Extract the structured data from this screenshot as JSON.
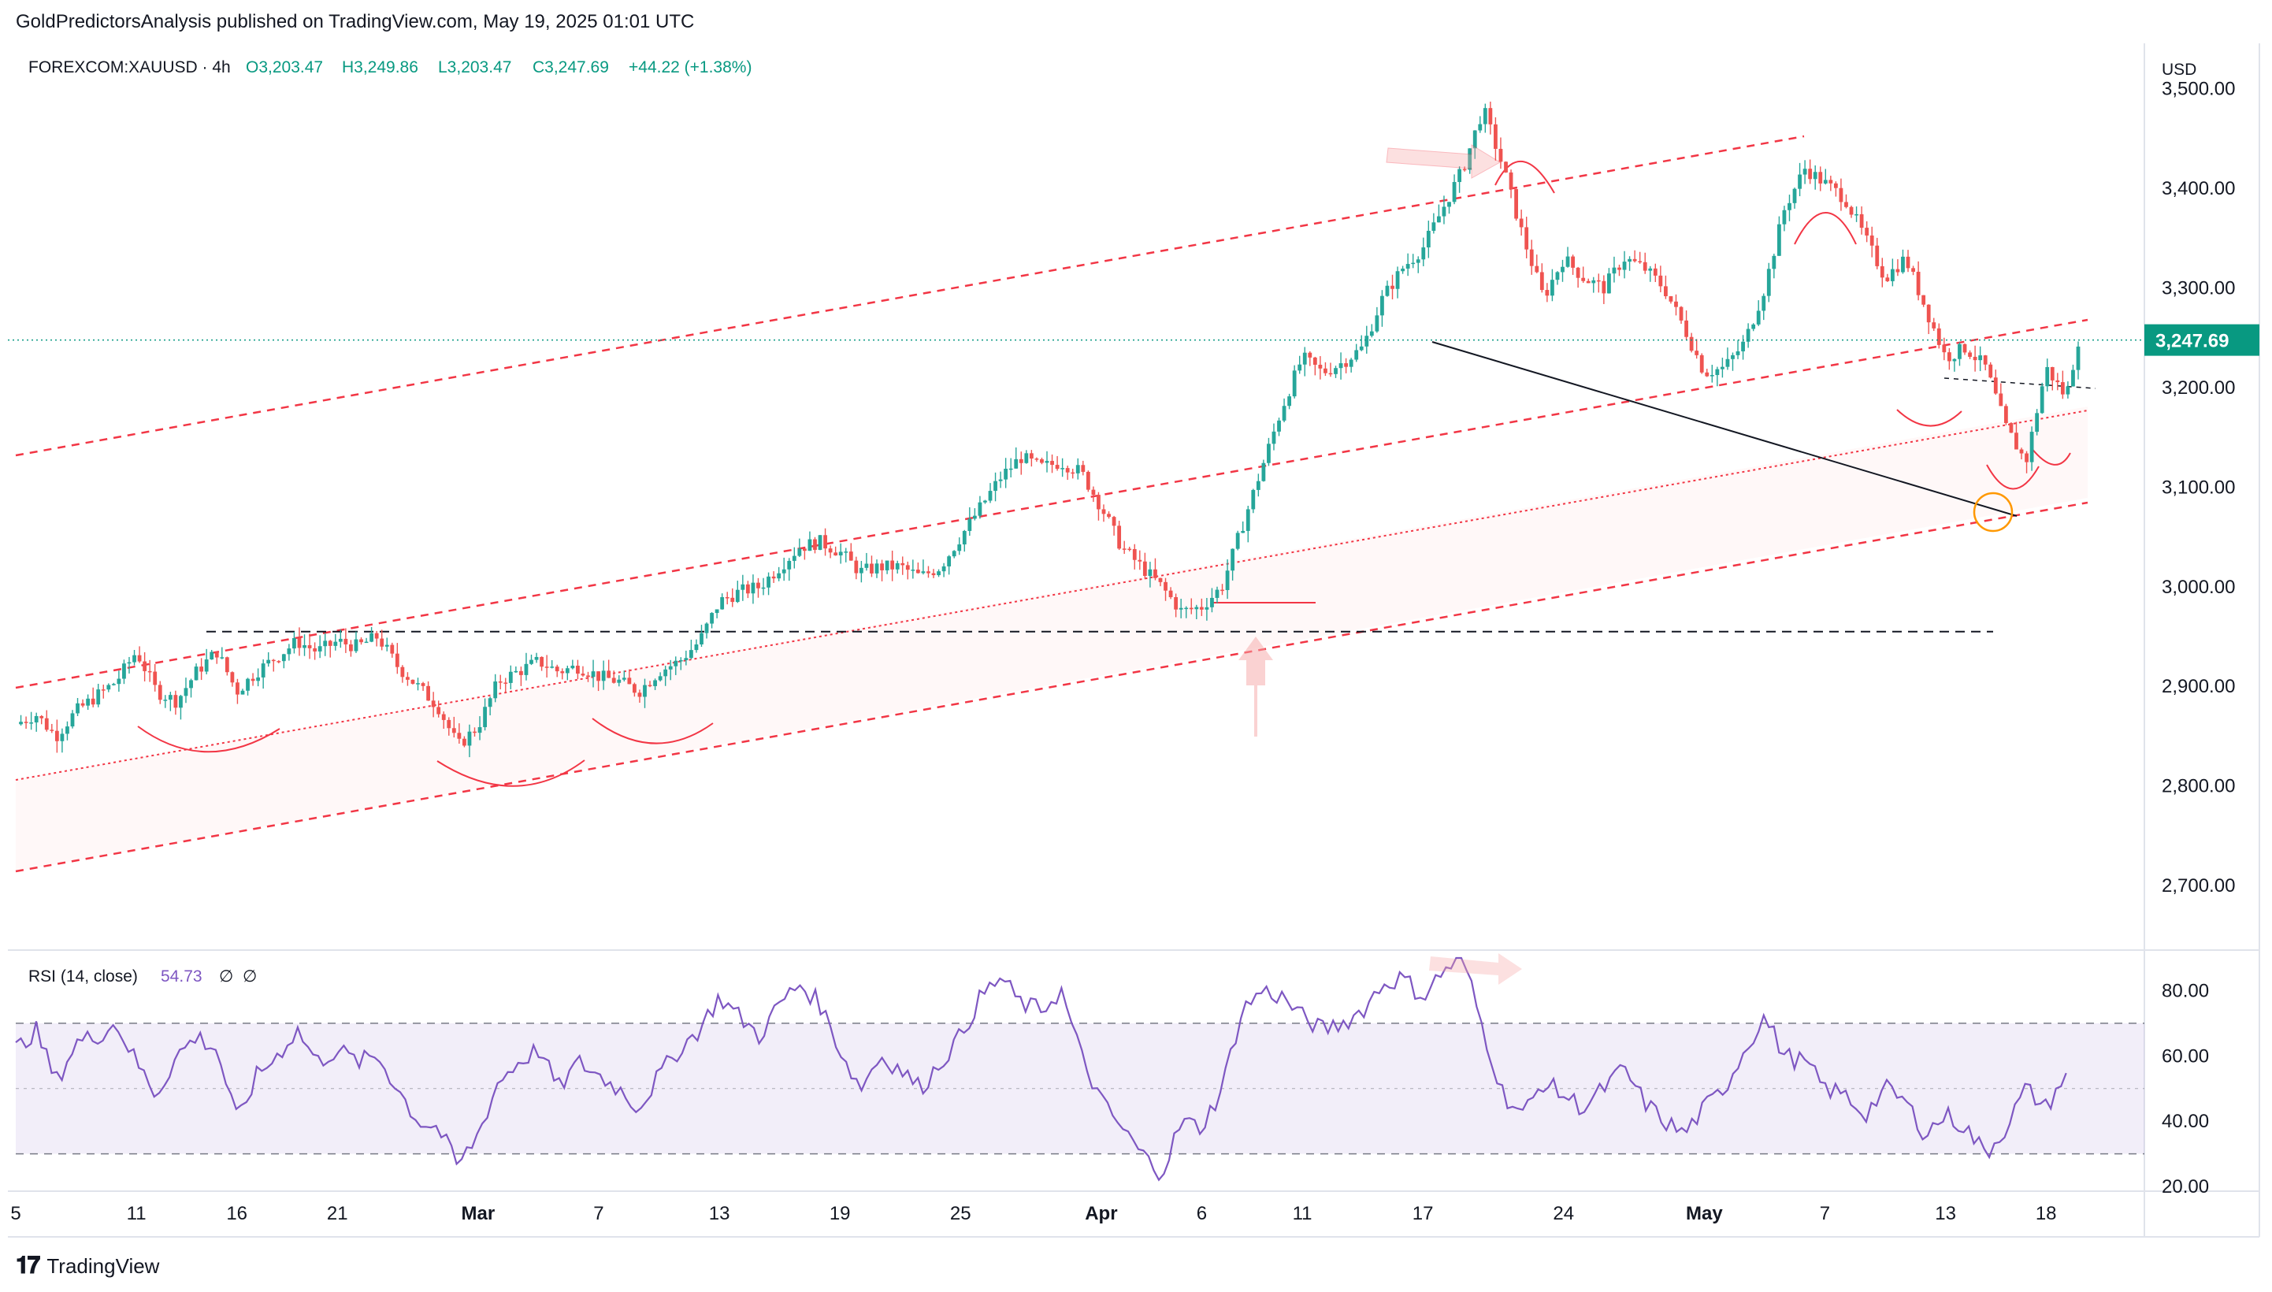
{
  "header": {
    "publisher_line": "GoldPredictorsAnalysis published on TradingView.com, May 19, 2025 01:01 UTC"
  },
  "footer": {
    "brand": "TradingView",
    "logo_icon": "tradingview-logo-icon"
  },
  "colors": {
    "bull": "#26a69a",
    "bear": "#ef5350",
    "channel": "#f23645",
    "rsi": "#7e57c2",
    "rsi_band": "#ede7f6",
    "price_label": "#089981",
    "text": "#131722"
  },
  "chart_data": [
    {
      "type": "candlestick",
      "symbol": "FOREXCOM:XAUUSD",
      "interval": "4h",
      "legend": {
        "symbol": "FOREXCOM:XAUUSD · 4h",
        "O": "O3,203.47",
        "H": "H3,249.86",
        "L": "L3,203.47",
        "C": "C3,247.69",
        "change": "+44.22 (+1.38%)"
      },
      "currency": "USD",
      "last_price": 3247.69,
      "last_price_label": "3,247.69",
      "ylim": [
        2640,
        3540
      ],
      "yticks": [
        2700,
        2800,
        2900,
        3000,
        3100,
        3200,
        3300,
        3400,
        3500
      ],
      "ytick_labels": [
        "2,700.00",
        "2,800.00",
        "2,900.00",
        "3,000.00",
        "3,100.00",
        "3,200.00",
        "3,300.00",
        "3,400.00",
        "3,500.00"
      ],
      "xticks": [
        {
          "label": "5",
          "day": 0
        },
        {
          "label": "11",
          "day": 6
        },
        {
          "label": "16",
          "day": 11
        },
        {
          "label": "21",
          "day": 16
        },
        {
          "label": "Mar",
          "day": 23
        },
        {
          "label": "7",
          "day": 29
        },
        {
          "label": "13",
          "day": 35
        },
        {
          "label": "19",
          "day": 41
        },
        {
          "label": "25",
          "day": 47
        },
        {
          "label": "Apr",
          "day": 54
        },
        {
          "label": "6",
          "day": 59
        },
        {
          "label": "11",
          "day": 64
        },
        {
          "label": "17",
          "day": 70
        },
        {
          "label": "24",
          "day": 77
        },
        {
          "label": "May",
          "day": 84
        },
        {
          "label": "7",
          "day": 90
        },
        {
          "label": "13",
          "day": 96
        },
        {
          "label": "18",
          "day": 101
        }
      ],
      "price_path": [
        [
          0,
          2862
        ],
        [
          1,
          2872
        ],
        [
          2,
          2850
        ],
        [
          3,
          2875
        ],
        [
          5,
          2905
        ],
        [
          6,
          2935
        ],
        [
          7,
          2895
        ],
        [
          8,
          2885
        ],
        [
          9,
          2915
        ],
        [
          10,
          2935
        ],
        [
          11,
          2895
        ],
        [
          12,
          2915
        ],
        [
          13,
          2930
        ],
        [
          14,
          2945
        ],
        [
          15,
          2935
        ],
        [
          16,
          2945
        ],
        [
          17,
          2940
        ],
        [
          18,
          2950
        ],
        [
          19,
          2920
        ],
        [
          20,
          2900
        ],
        [
          21,
          2880
        ],
        [
          22,
          2840
        ],
        [
          23,
          2860
        ],
        [
          24,
          2905
        ],
        [
          25,
          2915
        ],
        [
          26,
          2925
        ],
        [
          27,
          2915
        ],
        [
          28,
          2920
        ],
        [
          29,
          2910
        ],
        [
          30,
          2905
        ],
        [
          31,
          2895
        ],
        [
          32,
          2915
        ],
        [
          33,
          2925
        ],
        [
          34,
          2945
        ],
        [
          35,
          2985
        ],
        [
          36,
          2995
        ],
        [
          37,
          3000
        ],
        [
          38,
          3020
        ],
        [
          39,
          3040
        ],
        [
          40,
          3045
        ],
        [
          41,
          3035
        ],
        [
          42,
          3015
        ],
        [
          43,
          3020
        ],
        [
          44,
          3020
        ],
        [
          45,
          3010
        ],
        [
          46,
          3020
        ],
        [
          47,
          3050
        ],
        [
          48,
          3080
        ],
        [
          49,
          3110
        ],
        [
          50,
          3130
        ],
        [
          51,
          3120
        ],
        [
          52,
          3125
        ],
        [
          53,
          3115
        ],
        [
          54,
          3080
        ],
        [
          55,
          3040
        ],
        [
          56,
          3020
        ],
        [
          57,
          3000
        ],
        [
          58,
          2975
        ],
        [
          59,
          2980
        ],
        [
          60,
          3000
        ],
        [
          61,
          3060
        ],
        [
          62,
          3120
        ],
        [
          63,
          3180
        ],
        [
          64,
          3230
        ],
        [
          65,
          3215
        ],
        [
          66,
          3225
        ],
        [
          67,
          3240
        ],
        [
          68,
          3290
        ],
        [
          69,
          3320
        ],
        [
          70,
          3340
        ],
        [
          71,
          3380
        ],
        [
          72,
          3420
        ],
        [
          73,
          3480
        ],
        [
          74,
          3420
        ],
        [
          75,
          3350
        ],
        [
          76,
          3290
        ],
        [
          77,
          3330
        ],
        [
          78,
          3310
        ],
        [
          79,
          3300
        ],
        [
          80,
          3330
        ],
        [
          81,
          3320
        ],
        [
          82,
          3300
        ],
        [
          83,
          3260
        ],
        [
          84,
          3215
        ],
        [
          85,
          3220
        ],
        [
          86,
          3245
        ],
        [
          87,
          3300
        ],
        [
          88,
          3380
        ],
        [
          89,
          3420
        ],
        [
          90,
          3405
        ],
        [
          91,
          3390
        ],
        [
          92,
          3350
        ],
        [
          93,
          3310
        ],
        [
          94,
          3330
        ],
        [
          95,
          3280
        ],
        [
          96,
          3230
        ],
        [
          97,
          3240
        ],
        [
          98,
          3220
        ],
        [
          99,
          3160
        ],
        [
          100,
          3125
        ],
        [
          101,
          3220
        ],
        [
          102,
          3190
        ],
        [
          102.6,
          3247.69
        ]
      ],
      "horizontal_support": 2955,
      "annotations": {
        "peak": 3495,
        "support_pivot": 2960,
        "recent_low": 3120
      }
    },
    {
      "type": "line",
      "title": "RSI (14, close)",
      "value": 54.73,
      "value_label": "54.73",
      "extra_labels": [
        "∅",
        "∅"
      ],
      "yticks": [
        20,
        40,
        60,
        80
      ],
      "ytick_labels": [
        "20.00",
        "40.00",
        "60.00",
        "80.00"
      ],
      "ylim": [
        20,
        90
      ],
      "bands": {
        "upper": 70,
        "middle": 50,
        "lower": 30
      },
      "rsi_path": [
        [
          0,
          62
        ],
        [
          1,
          68
        ],
        [
          2,
          52
        ],
        [
          3,
          64
        ],
        [
          4,
          66
        ],
        [
          5,
          70
        ],
        [
          6,
          58
        ],
        [
          7,
          48
        ],
        [
          8,
          60
        ],
        [
          9,
          66
        ],
        [
          10,
          62
        ],
        [
          11,
          40
        ],
        [
          12,
          54
        ],
        [
          13,
          60
        ],
        [
          14,
          68
        ],
        [
          15,
          58
        ],
        [
          16,
          62
        ],
        [
          17,
          58
        ],
        [
          18,
          60
        ],
        [
          19,
          50
        ],
        [
          20,
          40
        ],
        [
          21,
          38
        ],
        [
          22,
          26
        ],
        [
          23,
          36
        ],
        [
          24,
          52
        ],
        [
          25,
          58
        ],
        [
          26,
          62
        ],
        [
          27,
          50
        ],
        [
          28,
          58
        ],
        [
          29,
          54
        ],
        [
          30,
          50
        ],
        [
          31,
          44
        ],
        [
          32,
          54
        ],
        [
          33,
          62
        ],
        [
          34,
          68
        ],
        [
          35,
          78
        ],
        [
          36,
          72
        ],
        [
          37,
          66
        ],
        [
          38,
          76
        ],
        [
          39,
          82
        ],
        [
          40,
          76
        ],
        [
          41,
          62
        ],
        [
          42,
          50
        ],
        [
          43,
          60
        ],
        [
          44,
          56
        ],
        [
          45,
          50
        ],
        [
          46,
          58
        ],
        [
          47,
          66
        ],
        [
          48,
          78
        ],
        [
          49,
          84
        ],
        [
          50,
          76
        ],
        [
          51,
          74
        ],
        [
          52,
          80
        ],
        [
          53,
          60
        ],
        [
          54,
          46
        ],
        [
          55,
          38
        ],
        [
          56,
          30
        ],
        [
          57,
          24
        ],
        [
          58,
          40
        ],
        [
          59,
          38
        ],
        [
          60,
          50
        ],
        [
          61,
          74
        ],
        [
          62,
          80
        ],
        [
          63,
          78
        ],
        [
          64,
          72
        ],
        [
          65,
          68
        ],
        [
          66,
          70
        ],
        [
          67,
          74
        ],
        [
          68,
          82
        ],
        [
          69,
          84
        ],
        [
          70,
          78
        ],
        [
          71,
          86
        ],
        [
          72,
          90
        ],
        [
          73,
          68
        ],
        [
          74,
          48
        ],
        [
          75,
          42
        ],
        [
          76,
          52
        ],
        [
          77,
          48
        ],
        [
          78,
          44
        ],
        [
          79,
          50
        ],
        [
          80,
          56
        ],
        [
          81,
          46
        ],
        [
          82,
          40
        ],
        [
          83,
          36
        ],
        [
          84,
          44
        ],
        [
          85,
          50
        ],
        [
          86,
          62
        ],
        [
          87,
          72
        ],
        [
          88,
          60
        ],
        [
          89,
          58
        ],
        [
          90,
          50
        ],
        [
          91,
          48
        ],
        [
          92,
          42
        ],
        [
          93,
          50
        ],
        [
          94,
          46
        ],
        [
          95,
          36
        ],
        [
          96,
          42
        ],
        [
          97,
          38
        ],
        [
          98,
          30
        ],
        [
          99,
          38
        ],
        [
          100,
          50
        ],
        [
          101,
          44
        ],
        [
          102,
          54.73
        ]
      ]
    }
  ]
}
